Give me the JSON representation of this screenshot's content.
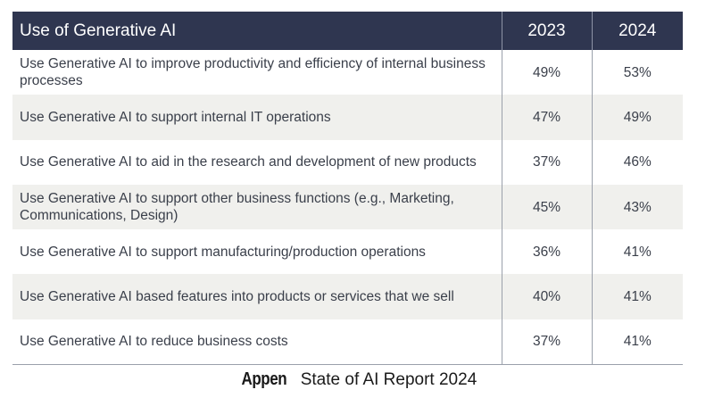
{
  "chart_data": {
    "type": "table",
    "columns": [
      "Use of Generative AI",
      "2023",
      "2024"
    ],
    "rows": [
      {
        "label": "Use Generative AI to improve productivity and efficiency of internal business processes",
        "v2023": "49%",
        "v2024": "53%"
      },
      {
        "label": "Use Generative AI to support internal IT operations",
        "v2023": "47%",
        "v2024": "49%"
      },
      {
        "label": "Use Generative AI to aid in the research and development of new products",
        "v2023": "37%",
        "v2024": "46%"
      },
      {
        "label": "Use Generative AI to support other business functions (e.g., Marketing, Communications, Design)",
        "v2023": "45%",
        "v2024": "43%"
      },
      {
        "label": "Use Generative AI to support manufacturing/production operations",
        "v2023": "36%",
        "v2024": "41%"
      },
      {
        "label": "Use Generative AI based features into products or services that we sell",
        "v2023": "40%",
        "v2024": "41%"
      },
      {
        "label": "Use Generative AI to reduce business costs",
        "v2023": "37%",
        "v2024": "41%"
      }
    ]
  },
  "footer": {
    "brand": "Appen",
    "title": "State of AI Report 2024"
  },
  "colors": {
    "header_bg": "#2f3650",
    "alt_row_bg": "#f0f0ed"
  }
}
